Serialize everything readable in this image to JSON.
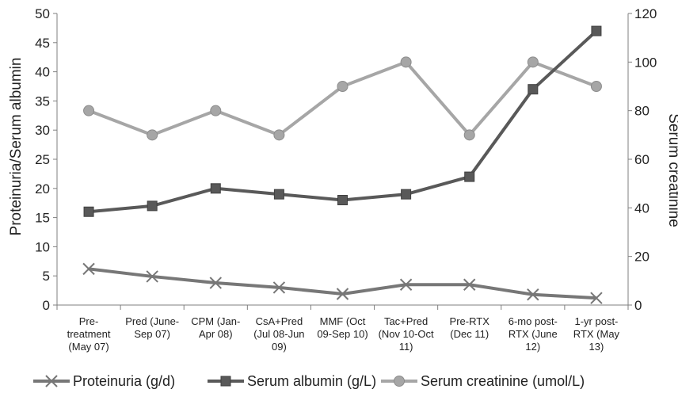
{
  "chart_data": {
    "type": "line",
    "categories": [
      [
        "Pre-",
        "treatment",
        "(May 07)"
      ],
      [
        "Pred (June-",
        "Sep 07)"
      ],
      [
        "CPM (Jan-",
        "Apr 08)"
      ],
      [
        "CsA+Pred",
        "(Jul 08-Jun",
        "09)"
      ],
      [
        "MMF (Oct",
        "09-Sep 10)"
      ],
      [
        "Tac+Pred",
        "(Nov 10-Oct",
        "11)"
      ],
      [
        "Pre-RTX",
        "(Dec 11)"
      ],
      [
        "6-mo post-",
        "RTX (June",
        "12)"
      ],
      [
        "1-yr post-",
        "RTX (May",
        "13)"
      ]
    ],
    "ylabel": "Proteinuria/Serum albumin",
    "y2label": "Serum creatinine",
    "ylim": [
      0,
      50
    ],
    "y2lim": [
      0,
      120
    ],
    "yticks": [
      "0",
      "5",
      "10",
      "15",
      "20",
      "25",
      "30",
      "35",
      "40",
      "45",
      "50"
    ],
    "y2ticks": [
      "0",
      "20",
      "40",
      "60",
      "80",
      "100",
      "120"
    ],
    "grid": false,
    "legend_position": "bottom",
    "series": [
      {
        "name": "Proteinuria (g/d)",
        "axis": "left",
        "marker": "x",
        "color": "#777777",
        "values": [
          6.2,
          4.9,
          3.8,
          3.0,
          1.9,
          3.5,
          3.5,
          1.8,
          1.2
        ]
      },
      {
        "name": "Serum albumin (g/L)",
        "axis": "left",
        "marker": "square",
        "color": "#595959",
        "values": [
          16,
          17,
          20,
          19,
          18,
          19,
          22,
          37,
          47
        ]
      },
      {
        "name": "Serum creatinine (umol/L)",
        "axis": "right",
        "marker": "circle",
        "color": "#a6a6a6",
        "values": [
          80,
          70,
          80,
          70,
          90,
          100,
          70,
          100,
          90
        ]
      }
    ]
  }
}
